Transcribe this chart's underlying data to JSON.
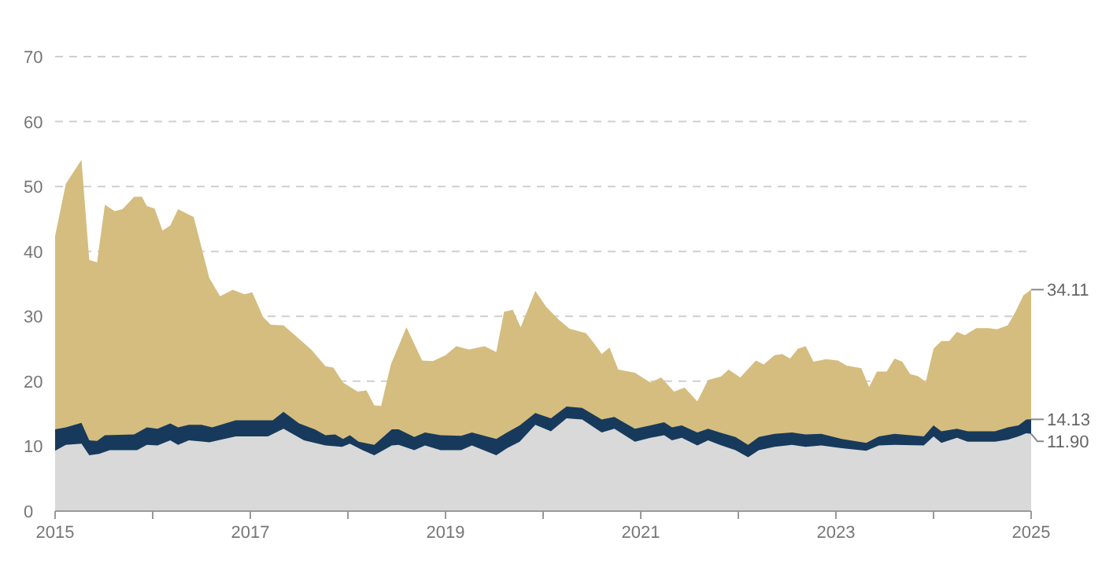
{
  "chart_data": {
    "type": "area",
    "xlim": [
      2015,
      2025
    ],
    "ylim": [
      0,
      70
    ],
    "xticks": [
      2015,
      {
        "value": 2016,
        "label": null
      },
      2017,
      {
        "value": 2018,
        "label": null
      },
      2019,
      {
        "value": 2020,
        "label": null
      },
      2021,
      {
        "value": 2022,
        "label": null
      },
      2023,
      {
        "value": 2024,
        "label": null
      },
      2025
    ],
    "yticks": [
      0,
      10,
      20,
      30,
      40,
      50,
      60,
      70
    ],
    "grid": "y",
    "line_style": "dashed",
    "series": [
      {
        "color": "#d5bd7f",
        "x": [
          2015,
          2015.11,
          2015.27,
          2015.35,
          2015.43,
          2015.51,
          2015.61,
          2015.69,
          2015.81,
          2015.89,
          2015.94,
          2016.02,
          2016.1,
          2016.18,
          2016.26,
          2016.42,
          2016.58,
          2016.69,
          2016.82,
          2016.94,
          2017.02,
          2017.13,
          2017.21,
          2017.34,
          2017.45,
          2017.63,
          2017.77,
          2017.85,
          2017.95,
          2018.1,
          2018.19,
          2018.27,
          2018.34,
          2018.44,
          2018.6,
          2018.76,
          2018.87,
          2019,
          2019.11,
          2019.24,
          2019.4,
          2019.52,
          2019.6,
          2019.69,
          2019.77,
          2019.92,
          2020.03,
          2020.16,
          2020.27,
          2020.44,
          2020.52,
          2020.6,
          2020.68,
          2020.77,
          2020.94,
          2021.1,
          2021.21,
          2021.34,
          2021.45,
          2021.58,
          2021.69,
          2021.82,
          2021.9,
          2022.02,
          2022.18,
          2022.26,
          2022.37,
          2022.45,
          2022.53,
          2022.61,
          2022.69,
          2022.77,
          2022.9,
          2023.02,
          2023.11,
          2023.26,
          2023.34,
          2023.42,
          2023.52,
          2023.6,
          2023.68,
          2023.76,
          2023.84,
          2023.92,
          2024,
          2024.08,
          2024.16,
          2024.24,
          2024.32,
          2024.44,
          2024.56,
          2024.65,
          2024.76,
          2024.84,
          2024.92,
          2025
        ],
        "values": [
          42.4,
          50.4,
          54.1,
          38.7,
          38.3,
          47.2,
          46.2,
          46.5,
          48.4,
          48.4,
          47,
          46.6,
          43.2,
          44,
          46.5,
          45.3,
          35.9,
          33.1,
          34.1,
          33.4,
          33.7,
          29.9,
          28.7,
          28.6,
          27.2,
          24.8,
          22.3,
          22.1,
          19.8,
          18.4,
          18.6,
          16.3,
          16.2,
          22.6,
          28.3,
          23.2,
          23.1,
          24,
          25.4,
          24.9,
          25.4,
          24.5,
          30.7,
          31,
          28.3,
          33.9,
          31.5,
          29.5,
          28.1,
          27.4,
          25.9,
          24.2,
          25.2,
          21.8,
          21.3,
          19.8,
          20.6,
          18.4,
          19,
          16.9,
          20.2,
          20.7,
          21.8,
          20.6,
          23.2,
          22.6,
          24,
          24.2,
          23.5,
          25,
          25.4,
          23,
          23.4,
          23.2,
          22.4,
          22,
          19.1,
          21.5,
          21.5,
          23.5,
          23,
          21.1,
          20.8,
          19.9,
          25,
          26.2,
          26.2,
          27.6,
          27.1,
          28.2,
          28.2,
          28,
          28.6,
          30.7,
          33.2,
          34.11
        ],
        "value_labels": [
          null,
          null,
          null,
          null,
          null,
          null,
          null,
          null,
          null,
          null,
          null,
          null,
          null,
          null,
          null,
          null,
          null,
          null,
          null,
          null,
          null,
          null,
          null,
          null,
          null,
          null,
          null,
          null,
          null,
          null,
          null,
          null,
          null,
          null,
          null,
          null,
          null,
          null,
          null,
          null,
          null,
          null,
          null,
          null,
          null,
          null,
          null,
          null,
          null,
          null,
          null,
          null,
          null,
          null,
          null,
          null,
          null,
          null,
          null,
          null,
          null,
          null,
          null,
          null,
          null,
          null,
          null,
          null,
          null,
          null,
          null,
          null,
          null,
          null,
          null,
          null,
          null,
          null,
          null,
          null,
          null,
          null,
          null,
          null,
          null,
          null,
          null,
          null,
          null,
          null,
          null,
          null,
          null,
          null,
          null,
          "34.11"
        ]
      },
      {
        "color": "#173a5c",
        "x": [
          2015,
          2015.11,
          2015.27,
          2015.35,
          2015.43,
          2015.51,
          2015.81,
          2015.94,
          2016.05,
          2016.18,
          2016.26,
          2016.37,
          2016.5,
          2016.61,
          2016.85,
          2017.23,
          2017.34,
          2017.5,
          2017.66,
          2017.77,
          2017.87,
          2017.95,
          2018.02,
          2018.11,
          2018.27,
          2018.45,
          2018.52,
          2018.68,
          2018.79,
          2018.95,
          2019.16,
          2019.27,
          2019.52,
          2019.63,
          2019.76,
          2019.92,
          2020.08,
          2020.24,
          2020.4,
          2020.6,
          2020.73,
          2020.94,
          2021.1,
          2021.24,
          2021.32,
          2021.42,
          2021.58,
          2021.69,
          2021.81,
          2021.97,
          2022.1,
          2022.21,
          2022.37,
          2022.55,
          2022.69,
          2022.85,
          2023.06,
          2023.31,
          2023.44,
          2023.6,
          2023.9,
          2024,
          2024.08,
          2024.24,
          2024.35,
          2024.63,
          2024.76,
          2024.87,
          2024.95,
          2025
        ],
        "values": [
          12.6,
          12.9,
          13.6,
          10.9,
          10.8,
          11.7,
          11.8,
          12.9,
          12.7,
          13.5,
          12.9,
          13.3,
          13.3,
          12.9,
          14,
          14,
          15.3,
          13.5,
          12.6,
          11.7,
          11.8,
          11.1,
          11.7,
          10.7,
          10.2,
          12.6,
          12.6,
          11.4,
          12.1,
          11.7,
          11.6,
          12.1,
          11.1,
          12.1,
          13.2,
          15.1,
          14.3,
          16.1,
          15.9,
          14.1,
          14.5,
          12.7,
          13.2,
          13.7,
          12.9,
          13.2,
          12.1,
          12.7,
          12.1,
          11.4,
          10.2,
          11.4,
          11.9,
          12.1,
          11.8,
          11.9,
          11.1,
          10.5,
          11.5,
          11.9,
          11.5,
          13.2,
          12.3,
          12.7,
          12.3,
          12.3,
          12.9,
          13.2,
          14.1,
          14.13
        ],
        "value_labels": [
          null,
          null,
          null,
          null,
          null,
          null,
          null,
          null,
          null,
          null,
          null,
          null,
          null,
          null,
          null,
          null,
          null,
          null,
          null,
          null,
          null,
          null,
          null,
          null,
          null,
          null,
          null,
          null,
          null,
          null,
          null,
          null,
          null,
          null,
          null,
          null,
          null,
          null,
          null,
          null,
          null,
          null,
          null,
          null,
          null,
          null,
          null,
          null,
          null,
          null,
          null,
          null,
          null,
          null,
          null,
          null,
          null,
          null,
          null,
          null,
          null,
          null,
          null,
          null,
          null,
          null,
          null,
          null,
          null,
          "14.13"
        ]
      },
      {
        "color": "#d9d9d9",
        "x": [
          2015,
          2015.11,
          2015.27,
          2015.35,
          2015.45,
          2015.56,
          2015.84,
          2015.94,
          2016.05,
          2016.18,
          2016.26,
          2016.37,
          2016.58,
          2016.85,
          2017.18,
          2017.34,
          2017.55,
          2017.77,
          2017.94,
          2018.02,
          2018.15,
          2018.27,
          2018.45,
          2018.52,
          2018.68,
          2018.79,
          2018.95,
          2019.16,
          2019.27,
          2019.52,
          2019.63,
          2019.76,
          2019.92,
          2020.08,
          2020.24,
          2020.4,
          2020.6,
          2020.73,
          2020.94,
          2021.1,
          2021.24,
          2021.32,
          2021.42,
          2021.58,
          2021.69,
          2021.81,
          2021.97,
          2022.1,
          2022.21,
          2022.37,
          2022.55,
          2022.69,
          2022.85,
          2023.06,
          2023.31,
          2023.44,
          2023.6,
          2023.9,
          2024,
          2024.08,
          2024.24,
          2024.35,
          2024.63,
          2024.76,
          2024.87,
          2024.95,
          2025
        ],
        "values": [
          9.3,
          10.2,
          10.4,
          8.6,
          8.8,
          9.4,
          9.4,
          10.2,
          10.1,
          10.9,
          10.2,
          10.9,
          10.6,
          11.5,
          11.5,
          12.7,
          10.9,
          10.1,
          9.9,
          10.4,
          9.4,
          8.6,
          10.1,
          10.2,
          9.4,
          10.1,
          9.4,
          9.4,
          10.1,
          8.6,
          9.7,
          10.7,
          13.3,
          12.3,
          14.3,
          14.1,
          12.1,
          12.7,
          10.7,
          11.3,
          11.7,
          10.9,
          11.3,
          10.1,
          10.9,
          10.2,
          9.4,
          8.3,
          9.4,
          9.9,
          10.2,
          9.9,
          10.1,
          9.7,
          9.3,
          10.1,
          10.2,
          10.1,
          11.5,
          10.5,
          11.3,
          10.7,
          10.7,
          11,
          11.5,
          12,
          11.9
        ],
        "value_labels": [
          null,
          null,
          null,
          null,
          null,
          null,
          null,
          null,
          null,
          null,
          null,
          null,
          null,
          null,
          null,
          null,
          null,
          null,
          null,
          null,
          null,
          null,
          null,
          null,
          null,
          null,
          null,
          null,
          null,
          null,
          null,
          null,
          null,
          null,
          null,
          null,
          null,
          null,
          null,
          null,
          null,
          null,
          null,
          null,
          null,
          null,
          null,
          null,
          null,
          null,
          null,
          null,
          null,
          null,
          null,
          null,
          null,
          null,
          null,
          null,
          null,
          null,
          null,
          null,
          null,
          null,
          "11.90"
        ]
      }
    ]
  }
}
